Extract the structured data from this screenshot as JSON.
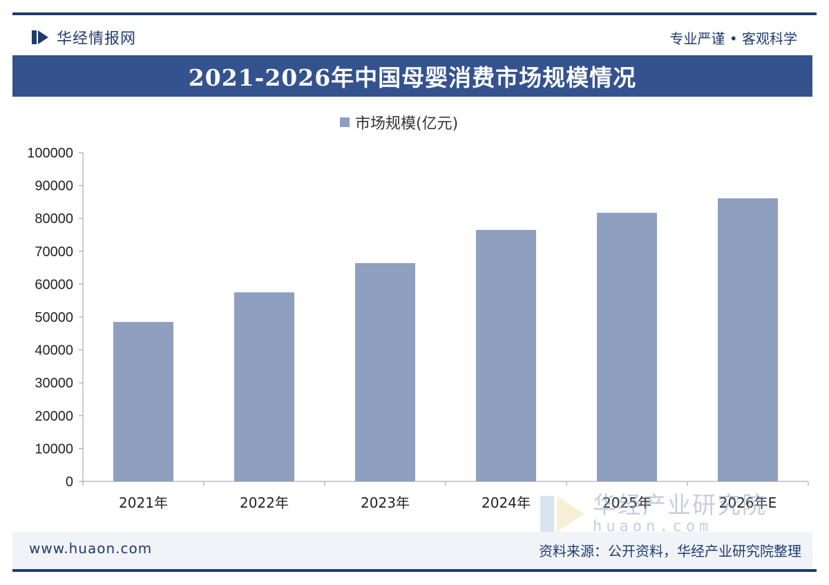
{
  "header": {
    "brand_name": "华经情报网",
    "slogan": "专业严谨 • 客观科学"
  },
  "chart_data": {
    "type": "bar",
    "title": "2021-2026年中国母婴消费市场规模情况",
    "categories": [
      "2021年",
      "2022年",
      "2023年",
      "2024年",
      "2025年",
      "2026年E"
    ],
    "series": [
      {
        "name": "市场规模(亿元)",
        "values": [
          48500,
          57500,
          66400,
          76500,
          81700,
          86100
        ]
      }
    ],
    "ylim": [
      0,
      100000
    ],
    "yticks": [
      "0",
      "10000",
      "20000",
      "30000",
      "40000",
      "50000",
      "60000",
      "70000",
      "80000",
      "90000",
      "100000"
    ],
    "legend_position": "top-center",
    "grid": false
  },
  "footer": {
    "url": "www.huaon.com",
    "source": "资料来源：公开资料，华经产业研究院整理"
  },
  "watermark": {
    "name": "华经产业研究院",
    "domain": "huaon.com"
  },
  "colors": {
    "bar": "#8e9fbf",
    "title_bar": "#34528e",
    "brand": "#1f3b6e"
  },
  "icons": {
    "brand_logo": "huajing-logo-icon",
    "watermark_logo": "huajing-watermark-logo-icon"
  }
}
